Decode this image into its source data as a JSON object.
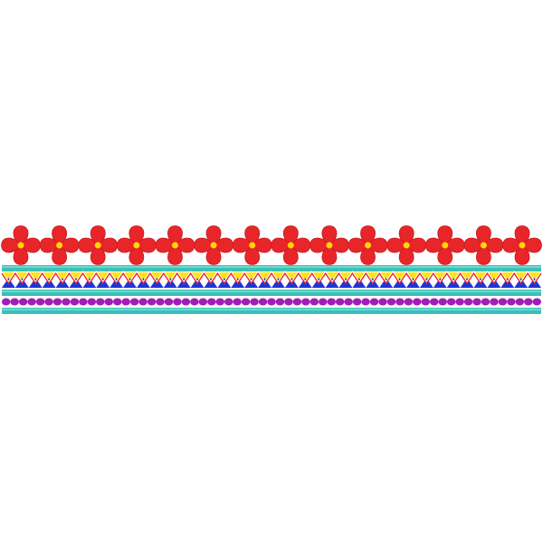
{
  "design": {
    "flower_count": 14,
    "zigzag_teeth": 40,
    "bead_count": 63,
    "colors": {
      "background": "#ffffff",
      "petal": "#e8262a",
      "petal_shade": "#c81a1e",
      "flower_center": "#ffd600",
      "teal_band": "#3cbfb8",
      "teal_band_light": "#6fd8d0",
      "zigzag_yellow": "#ffe21a",
      "zigzag_blue": "#1f35d6",
      "zigzag_outline_red": "#e8262a",
      "zigzag_outline_white": "#ffffff",
      "bead_purple": "#a21cb8"
    }
  }
}
